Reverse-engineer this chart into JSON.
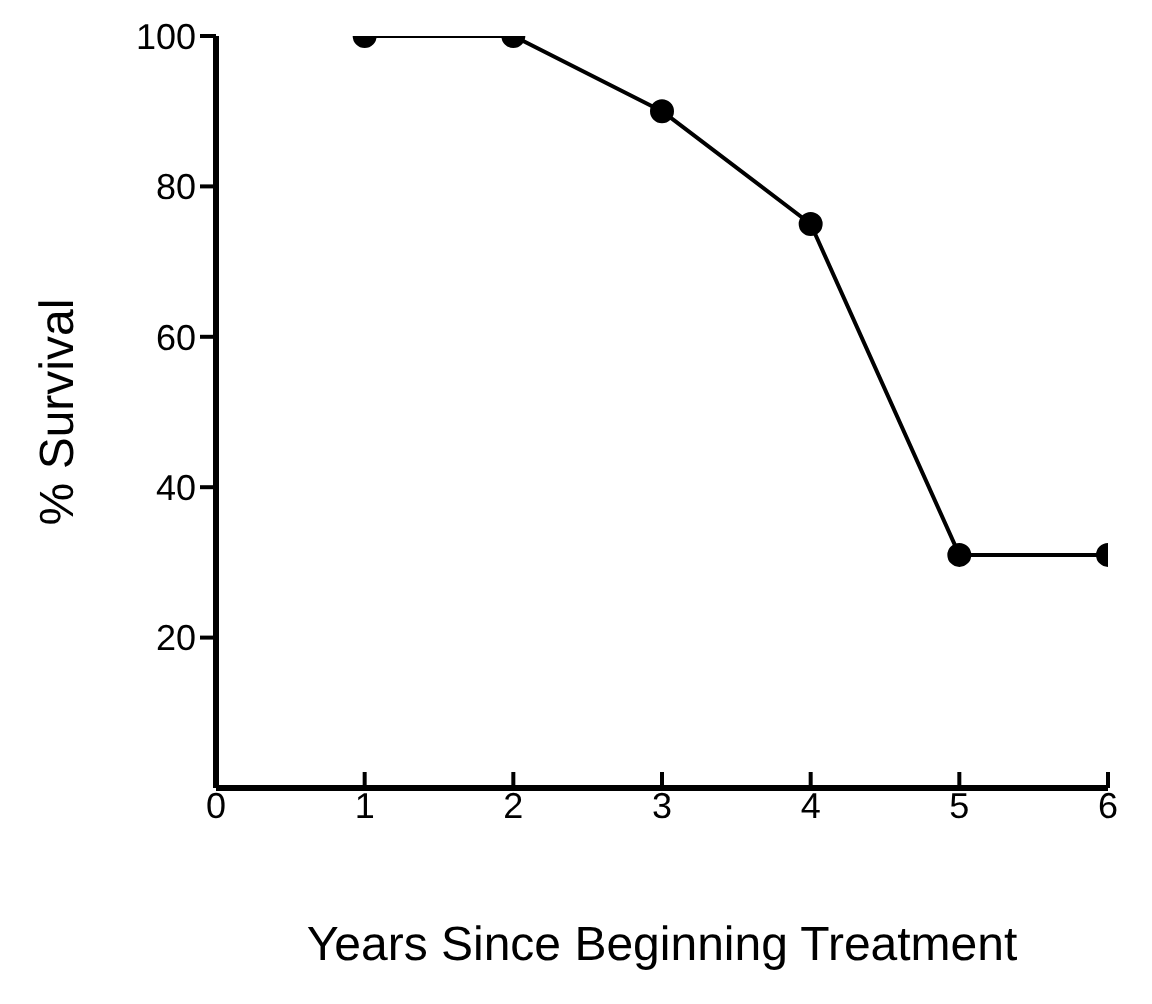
{
  "chart_data": {
    "type": "line",
    "xlabel": "Years Since Beginning Treatment",
    "ylabel": "%     Survival",
    "x": [
      1,
      2,
      3,
      4,
      5,
      6
    ],
    "series": [
      {
        "color": "#000000",
        "values": [
          100,
          100,
          90,
          75,
          31,
          31
        ]
      }
    ],
    "xlim": [
      0,
      6
    ],
    "xticks": [
      0,
      1,
      2,
      3,
      4,
      5,
      6
    ],
    "ylim": [
      0,
      100
    ],
    "yticks": [
      20,
      40,
      60,
      80,
      100
    ],
    "grid": false,
    "legend": false,
    "marker": "circle",
    "line_style": "solid"
  }
}
